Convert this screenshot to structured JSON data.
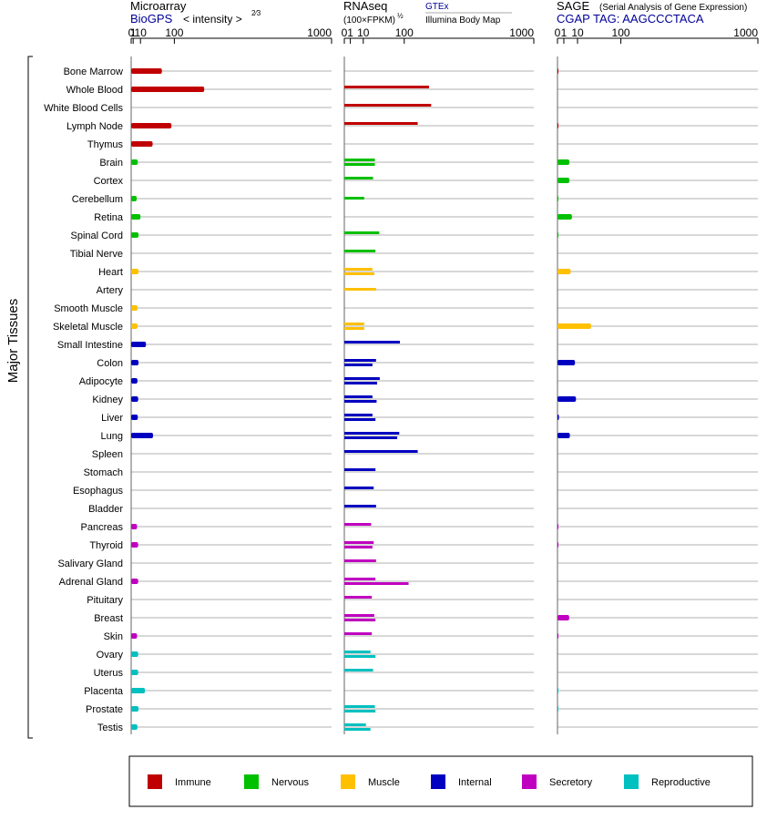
{
  "panels": {
    "microarray": {
      "title": "Microarray",
      "source": "BioGPS",
      "scale": "< intensity >",
      "exponent": "2⁄3"
    },
    "rnaseq": {
      "title": "RNAseq",
      "scale": "(100×FPKM)",
      "exponent": "½",
      "source1": "GTEx",
      "source2": "Illumina Body Map"
    },
    "sage": {
      "title": "SAGE",
      "subtitle": "(Serial Analysis of Gene Expression)",
      "tag": "CGAP TAG: AAGCCCTACA"
    }
  },
  "group_label": "Major Tissues",
  "legend": [
    {
      "label": "Immune",
      "color": "#c00000"
    },
    {
      "label": "Nervous",
      "color": "#00c000"
    },
    {
      "label": "Muscle",
      "color": "#ffc000"
    },
    {
      "label": "Internal",
      "color": "#0000c0"
    },
    {
      "label": "Secretory",
      "color": "#c000c0"
    },
    {
      "label": "Reproductive",
      "color": "#00c0c0"
    }
  ],
  "chart_data": {
    "type": "bar",
    "orientation": "horizontal",
    "x_ticks": [
      "0",
      "1",
      "10",
      "100",
      "1000"
    ],
    "x_scale": "power (microarray, exponent 2/3) / square root (RNAseq, SAGE)",
    "xlim": [
      0,
      1000
    ],
    "categories": [
      "Bone Marrow",
      "Whole Blood",
      "White Blood Cells",
      "Lymph Node",
      "Thymus",
      "Brain",
      "Cortex",
      "Cerebellum",
      "Retina",
      "Spinal Cord",
      "Tibial Nerve",
      "Heart",
      "Artery",
      "Smooth Muscle",
      "Skeletal Muscle",
      "Small Intestine",
      "Colon",
      "Adipocyte",
      "Kidney",
      "Liver",
      "Lung",
      "Spleen",
      "Stomach",
      "Esophagus",
      "Bladder",
      "Pancreas",
      "Thyroid",
      "Salivary Gland",
      "Adrenal Gland",
      "Pituitary",
      "Breast",
      "Skin",
      "Ovary",
      "Uterus",
      "Placenta",
      "Prostate",
      "Testis"
    ],
    "tissue_system": [
      "Immune",
      "Immune",
      "Immune",
      "Immune",
      "Immune",
      "Nervous",
      "Nervous",
      "Nervous",
      "Nervous",
      "Nervous",
      "Nervous",
      "Muscle",
      "Muscle",
      "Muscle",
      "Muscle",
      "Internal",
      "Internal",
      "Internal",
      "Internal",
      "Internal",
      "Internal",
      "Internal",
      "Internal",
      "Internal",
      "Internal",
      "Secretory",
      "Secretory",
      "Secretory",
      "Secretory",
      "Secretory",
      "Secretory",
      "Secretory",
      "Reproductive",
      "Reproductive",
      "Reproductive",
      "Reproductive",
      "Reproductive"
    ],
    "series": [
      {
        "name": "Microarray",
        "values": [
          60,
          220,
          null,
          90,
          35,
          6,
          null,
          4.5,
          10,
          7,
          null,
          7,
          null,
          5.5,
          5.5,
          20,
          7,
          5.5,
          6.5,
          6,
          36,
          null,
          null,
          null,
          null,
          5,
          6.5,
          null,
          6.5,
          null,
          null,
          5,
          6.5,
          6.5,
          18,
          7,
          5.5
        ]
      },
      {
        "name": "RNAseq GTEx",
        "values": [
          null,
          200,
          210,
          150,
          null,
          26,
          23,
          null,
          null,
          34,
          27,
          22,
          null,
          null,
          11,
          86,
          28,
          35,
          22,
          22,
          84,
          150,
          27,
          24,
          28,
          20,
          24,
          28,
          27,
          21,
          25,
          21,
          19,
          23,
          null,
          26,
          13
        ]
      },
      {
        "name": "RNAseq Illumina Body Map",
        "values": [
          null,
          null,
          null,
          null,
          null,
          26,
          null,
          11,
          null,
          null,
          null,
          25,
          28,
          null,
          11,
          null,
          22,
          30,
          29,
          27,
          78,
          null,
          null,
          null,
          null,
          null,
          22,
          null,
          115,
          null,
          27,
          null,
          27,
          null,
          null,
          27,
          19
        ]
      },
      {
        "name": "SAGE",
        "values": [
          0.02,
          null,
          null,
          0.02,
          null,
          3.5,
          3.5,
          0.01,
          5.2,
          0.01,
          null,
          4.3,
          null,
          null,
          28,
          null,
          7.6,
          null,
          8.5,
          0.05,
          3.8,
          null,
          null,
          null,
          null,
          0.02,
          0.02,
          null,
          null,
          null,
          3.4,
          0.02,
          null,
          null,
          0.02,
          0.02,
          null
        ]
      }
    ]
  }
}
